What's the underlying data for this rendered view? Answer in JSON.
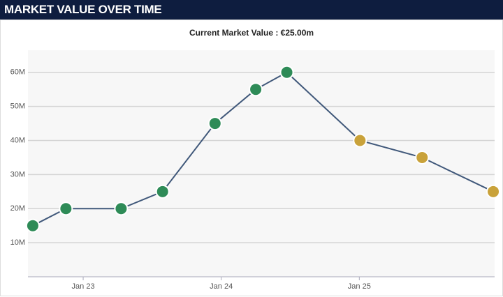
{
  "header": {
    "title": "MARKET VALUE OVER TIME"
  },
  "chart_data": {
    "type": "line",
    "subtitle": "Current Market Value : €25.00m",
    "x": [
      2022.635,
      2022.875,
      2023.275,
      2023.575,
      2023.955,
      2024.25,
      2024.475,
      2025.005,
      2025.455,
      2025.97
    ],
    "series": [
      {
        "color": "#40587a",
        "values": [
          15,
          20,
          20,
          25,
          45,
          55,
          60,
          40,
          35,
          25
        ],
        "marker_colors": [
          "#2e8b57",
          "#2e8b57",
          "#2e8b57",
          "#2e8b57",
          "#2e8b57",
          "#2e8b57",
          "#2e8b57",
          "#c9a23a",
          "#c9a23a",
          "#c9a23a"
        ]
      }
    ],
    "xlim": [
      2022.6,
      2025.98
    ],
    "xticks": [
      {
        "value": 2023,
        "label": "Jan 23"
      },
      {
        "value": 2024,
        "label": "Jan 24"
      },
      {
        "value": 2025,
        "label": "Jan 25"
      }
    ],
    "ylim": [
      0,
      66.5
    ],
    "yticks": [
      {
        "value": 10,
        "label": "10M"
      },
      {
        "value": 20,
        "label": "20M"
      },
      {
        "value": 30,
        "label": "30M"
      },
      {
        "value": 40,
        "label": "40M"
      },
      {
        "value": 50,
        "label": "50M"
      },
      {
        "value": 60,
        "label": "60M"
      }
    ],
    "grid": true
  }
}
